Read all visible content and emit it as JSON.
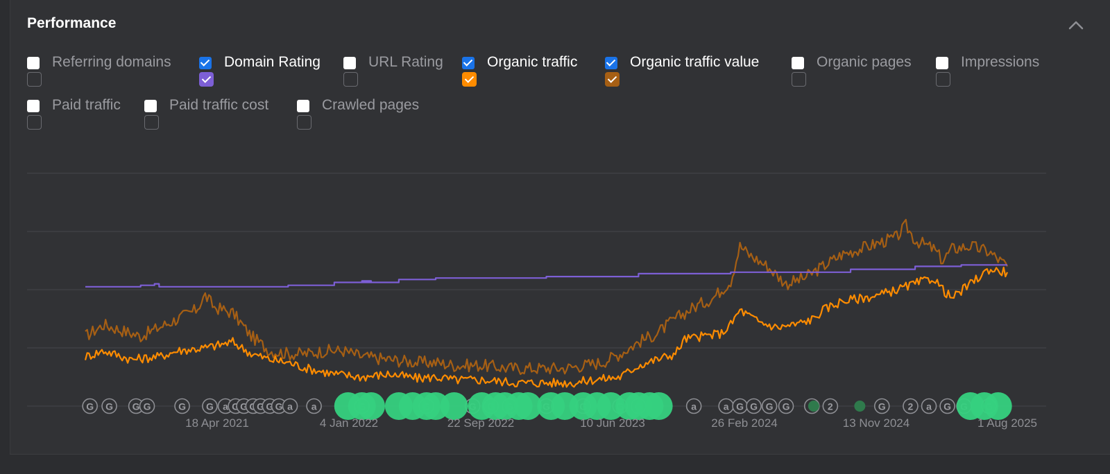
{
  "panel": {
    "title": "Performance",
    "collapse_icon": "chevron-up-icon"
  },
  "metrics": [
    {
      "label": "Referring domains",
      "checked": false,
      "color": ""
    },
    {
      "label": "Domain Rating",
      "checked": true,
      "color": "#7d5fd6"
    },
    {
      "label": "URL Rating",
      "checked": false,
      "color": ""
    },
    {
      "label": "Organic traffic",
      "checked": true,
      "color": "#ff8c00"
    },
    {
      "label": "Organic traffic value",
      "checked": true,
      "color": "#a65f14"
    },
    {
      "label": "Organic pages",
      "checked": false,
      "color": ""
    },
    {
      "label": "Impressions",
      "checked": false,
      "color": ""
    },
    {
      "label": "Paid traffic",
      "checked": false,
      "color": ""
    },
    {
      "label": "Paid traffic cost",
      "checked": false,
      "color": ""
    },
    {
      "label": "Crawled pages",
      "checked": false,
      "color": ""
    }
  ],
  "chart_data": {
    "type": "line",
    "x_tick_labels": [
      "18 Apr 2021",
      "4 Jan 2022",
      "22 Sep 2022",
      "10 Jun 2023",
      "26 Feb 2024",
      "13 Nov 2024",
      "1 Aug 2025"
    ],
    "x_range": [
      "2020-09-01",
      "2025-08-01"
    ],
    "grid": true,
    "series": [
      {
        "name": "Domain Rating",
        "color": "#7d5fd6",
        "points": [
          [
            0,
            41
          ],
          [
            0.06,
            41.5
          ],
          [
            0.075,
            42
          ],
          [
            0.08,
            41
          ],
          [
            0.17,
            41
          ],
          [
            0.22,
            41.5
          ],
          [
            0.27,
            42.5
          ],
          [
            0.31,
            43
          ],
          [
            0.3,
            42.5
          ],
          [
            0.34,
            43.5
          ],
          [
            0.38,
            44
          ],
          [
            0.44,
            44
          ],
          [
            0.5,
            44.5
          ],
          [
            0.58,
            44.5
          ],
          [
            0.6,
            45.5
          ],
          [
            0.66,
            45.5
          ],
          [
            0.7,
            46
          ],
          [
            0.75,
            46
          ],
          [
            0.8,
            46
          ],
          [
            0.83,
            47
          ],
          [
            0.9,
            48
          ],
          [
            0.95,
            48.5
          ],
          [
            1.0,
            48.5
          ]
        ]
      },
      {
        "name": "Organic traffic",
        "color": "#ff8c00",
        "points": [
          [
            0,
            17
          ],
          [
            0.02,
            19
          ],
          [
            0.05,
            16
          ],
          [
            0.08,
            17
          ],
          [
            0.1,
            19
          ],
          [
            0.13,
            20
          ],
          [
            0.16,
            22
          ],
          [
            0.18,
            18
          ],
          [
            0.2,
            16
          ],
          [
            0.22,
            15
          ],
          [
            0.24,
            13
          ],
          [
            0.27,
            11
          ],
          [
            0.3,
            10
          ],
          [
            0.33,
            11
          ],
          [
            0.36,
            9.5
          ],
          [
            0.38,
            10
          ],
          [
            0.4,
            9
          ],
          [
            0.43,
            9
          ],
          [
            0.47,
            8
          ],
          [
            0.5,
            8
          ],
          [
            0.53,
            8
          ],
          [
            0.55,
            9
          ],
          [
            0.58,
            10
          ],
          [
            0.6,
            14
          ],
          [
            0.62,
            16
          ],
          [
            0.64,
            18
          ],
          [
            0.65,
            23
          ],
          [
            0.67,
            24
          ],
          [
            0.69,
            25
          ],
          [
            0.7,
            28
          ],
          [
            0.71,
            33
          ],
          [
            0.73,
            29
          ],
          [
            0.75,
            27
          ],
          [
            0.77,
            28
          ],
          [
            0.79,
            30
          ],
          [
            0.8,
            33
          ],
          [
            0.82,
            36
          ],
          [
            0.84,
            37
          ],
          [
            0.86,
            38
          ],
          [
            0.88,
            40
          ],
          [
            0.9,
            42
          ],
          [
            0.92,
            44
          ],
          [
            0.93,
            40
          ],
          [
            0.94,
            37
          ],
          [
            0.96,
            42
          ],
          [
            0.98,
            47
          ],
          [
            1.0,
            46
          ]
        ]
      },
      {
        "name": "Organic traffic value",
        "color": "#a65f14",
        "points": [
          [
            0,
            24
          ],
          [
            0.02,
            28
          ],
          [
            0.04,
            26
          ],
          [
            0.06,
            24
          ],
          [
            0.08,
            27
          ],
          [
            0.1,
            30
          ],
          [
            0.12,
            33
          ],
          [
            0.13,
            38
          ],
          [
            0.14,
            34
          ],
          [
            0.16,
            32
          ],
          [
            0.18,
            24
          ],
          [
            0.2,
            19
          ],
          [
            0.22,
            18
          ],
          [
            0.24,
            18
          ],
          [
            0.26,
            19
          ],
          [
            0.28,
            19
          ],
          [
            0.3,
            17
          ],
          [
            0.33,
            16
          ],
          [
            0.36,
            15
          ],
          [
            0.38,
            15
          ],
          [
            0.4,
            14
          ],
          [
            0.43,
            14
          ],
          [
            0.46,
            13
          ],
          [
            0.49,
            13
          ],
          [
            0.52,
            13
          ],
          [
            0.54,
            14
          ],
          [
            0.56,
            15
          ],
          [
            0.58,
            18
          ],
          [
            0.6,
            22
          ],
          [
            0.62,
            25
          ],
          [
            0.64,
            30
          ],
          [
            0.66,
            34
          ],
          [
            0.68,
            37
          ],
          [
            0.7,
            43
          ],
          [
            0.71,
            55
          ],
          [
            0.72,
            52
          ],
          [
            0.74,
            48
          ],
          [
            0.76,
            42
          ],
          [
            0.78,
            44
          ],
          [
            0.8,
            48
          ],
          [
            0.82,
            52
          ],
          [
            0.84,
            54
          ],
          [
            0.86,
            56
          ],
          [
            0.88,
            58
          ],
          [
            0.89,
            62
          ],
          [
            0.9,
            57
          ],
          [
            0.92,
            54
          ],
          [
            0.93,
            50
          ],
          [
            0.94,
            54
          ],
          [
            0.96,
            55
          ],
          [
            0.98,
            53
          ],
          [
            1.0,
            48
          ]
        ]
      }
    ],
    "event_markers": [
      {
        "type": "G",
        "x": 0.005
      },
      {
        "type": "G",
        "x": 0.026
      },
      {
        "type": "G",
        "x": 0.055
      },
      {
        "type": "G",
        "x": 0.067
      },
      {
        "type": "G",
        "x": 0.105
      },
      {
        "type": "G",
        "x": 0.135
      },
      {
        "type": "a",
        "x": 0.152
      },
      {
        "type": "G",
        "x": 0.163
      },
      {
        "type": "G",
        "x": 0.172
      },
      {
        "type": "G",
        "x": 0.182
      },
      {
        "type": "G",
        "x": 0.19
      },
      {
        "type": "G",
        "x": 0.2
      },
      {
        "type": "G",
        "x": 0.21
      },
      {
        "type": "a",
        "x": 0.222
      },
      {
        "type": "a",
        "x": 0.248
      },
      {
        "type": "G",
        "x": 0.3
      },
      {
        "type": "G",
        "x": 0.37
      },
      {
        "type": "G",
        "x": 0.42
      },
      {
        "type": "G",
        "x": 0.44
      },
      {
        "type": "G",
        "x": 0.46
      },
      {
        "type": "G",
        "x": 0.5
      },
      {
        "type": "G",
        "x": 0.54
      },
      {
        "type": "G",
        "x": 0.58
      },
      {
        "type": "G",
        "x": 0.6
      },
      {
        "type": "a",
        "x": 0.66
      },
      {
        "type": "a",
        "x": 0.695
      },
      {
        "type": "G",
        "x": 0.71
      },
      {
        "type": "G",
        "x": 0.725
      },
      {
        "type": "G",
        "x": 0.742
      },
      {
        "type": "G",
        "x": 0.76
      },
      {
        "type": "a",
        "x": 0.788
      },
      {
        "type": "2",
        "x": 0.808
      },
      {
        "type": "G",
        "x": 0.864
      },
      {
        "type": "2",
        "x": 0.895
      },
      {
        "type": "a",
        "x": 0.915
      },
      {
        "type": "G",
        "x": 0.935
      },
      {
        "type": "G",
        "x": 0.953
      },
      {
        "type": "G",
        "x": 0.98
      }
    ],
    "annotation_clusters": [
      {
        "x": 0.285
      },
      {
        "x": 0.3
      },
      {
        "x": 0.31
      },
      {
        "x": 0.34
      },
      {
        "x": 0.355
      },
      {
        "x": 0.37
      },
      {
        "x": 0.38
      },
      {
        "x": 0.4
      },
      {
        "x": 0.43
      },
      {
        "x": 0.445
      },
      {
        "x": 0.455
      },
      {
        "x": 0.47
      },
      {
        "x": 0.48
      },
      {
        "x": 0.505
      },
      {
        "x": 0.52
      },
      {
        "x": 0.54
      },
      {
        "x": 0.555
      },
      {
        "x": 0.57
      },
      {
        "x": 0.59
      },
      {
        "x": 0.6
      },
      {
        "x": 0.612
      },
      {
        "x": 0.622
      },
      {
        "x": 0.96
      },
      {
        "x": 0.975
      },
      {
        "x": 0.99
      }
    ],
    "small_dots": [
      {
        "x": 0.79
      },
      {
        "x": 0.84
      }
    ]
  }
}
